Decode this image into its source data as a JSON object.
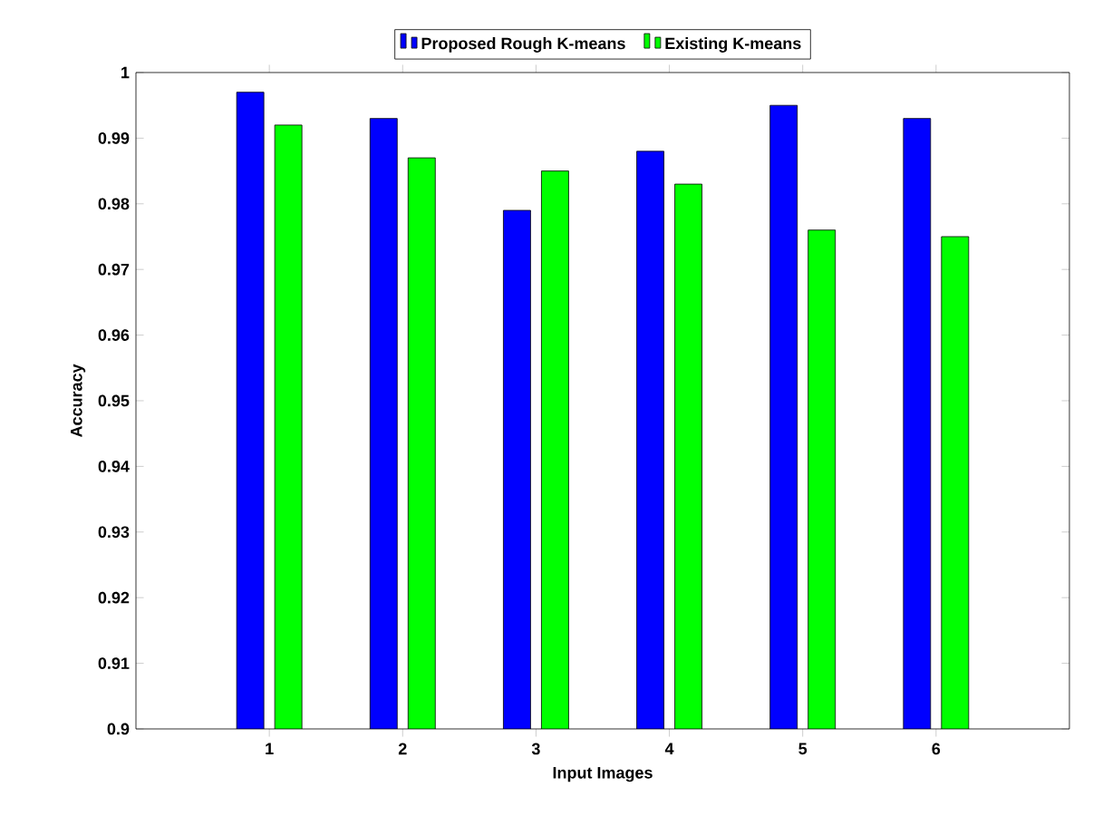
{
  "chart_data": {
    "type": "bar",
    "xlabel": "Input Images",
    "ylabel": "Accuracy",
    "categories": [
      "1",
      "2",
      "3",
      "4",
      "5",
      "6"
    ],
    "series": [
      {
        "name": "Proposed Rough K-means",
        "color": "#0000ff",
        "values": [
          0.997,
          0.993,
          0.979,
          0.988,
          0.995,
          0.993
        ]
      },
      {
        "name": "Existing K-means",
        "color": "#00ff00",
        "values": [
          0.992,
          0.987,
          0.985,
          0.983,
          0.976,
          0.975
        ]
      }
    ],
    "ylim": [
      0.9,
      1
    ],
    "yticks": [
      0.9,
      0.91,
      0.92,
      0.93,
      0.94,
      0.95,
      0.96,
      0.97,
      0.98,
      0.99,
      1
    ],
    "legend": "top"
  }
}
